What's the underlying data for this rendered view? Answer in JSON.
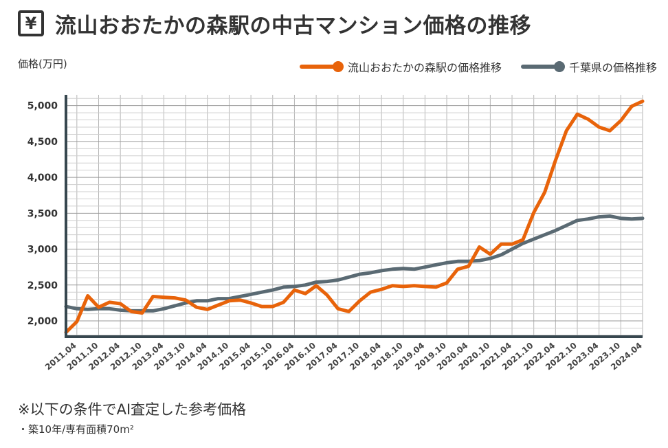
{
  "header": {
    "icon": "yen-icon",
    "icon_glyph": "¥",
    "title": "流山おおたかの森駅の中古マンション価格の推移"
  },
  "notes": {
    "main": "※以下の条件でAI査定した参考価格",
    "condition": "・築10年/専有面積70m²"
  },
  "chart_data": {
    "type": "line",
    "ylabel": "価格(万円)",
    "ylim": [
      1780,
      5150
    ],
    "yticks": [
      2000,
      2500,
      3000,
      3500,
      4000,
      4500,
      5000
    ],
    "ytick_labels": [
      "2,000",
      "2,500",
      "3,000",
      "3,500",
      "4,000",
      "4,500",
      "5,000"
    ],
    "x_tick_labels": [
      "2011.04",
      "2011.10",
      "2012.04",
      "2012.10",
      "2013.04",
      "2013.10",
      "2014.04",
      "2014.10",
      "2015.04",
      "2015.10",
      "2016.04",
      "2016.10",
      "2017.04",
      "2017.10",
      "2018.04",
      "2018.10",
      "2019.04",
      "2019.10",
      "2020.04",
      "2020.10",
      "2021.04",
      "2021.10",
      "2022.04",
      "2022.10",
      "2023.04",
      "2023.10",
      "2024.04"
    ],
    "x": [
      "2011.01",
      "2011.04",
      "2011.07",
      "2011.10",
      "2012.01",
      "2012.04",
      "2012.07",
      "2012.10",
      "2013.01",
      "2013.04",
      "2013.07",
      "2013.10",
      "2014.01",
      "2014.04",
      "2014.07",
      "2014.10",
      "2015.01",
      "2015.04",
      "2015.07",
      "2015.10",
      "2016.01",
      "2016.04",
      "2016.07",
      "2016.10",
      "2017.01",
      "2017.04",
      "2017.07",
      "2017.10",
      "2018.01",
      "2018.04",
      "2018.07",
      "2018.10",
      "2019.01",
      "2019.04",
      "2019.07",
      "2019.10",
      "2020.01",
      "2020.04",
      "2020.07",
      "2020.10",
      "2021.01",
      "2021.04",
      "2021.07",
      "2021.10",
      "2022.01",
      "2022.04",
      "2022.07",
      "2022.10",
      "2023.01",
      "2023.04",
      "2023.07",
      "2023.10",
      "2024.01",
      "2024.04"
    ],
    "series": [
      {
        "name": "流山おおたかの森駅の価格推移",
        "color": "#e8630a",
        "values": [
          1840,
          1990,
          2350,
          2190,
          2260,
          2240,
          2130,
          2110,
          2340,
          2330,
          2320,
          2290,
          2190,
          2160,
          2220,
          2280,
          2290,
          2250,
          2200,
          2200,
          2260,
          2430,
          2380,
          2490,
          2360,
          2170,
          2130,
          2280,
          2400,
          2440,
          2490,
          2480,
          2490,
          2480,
          2470,
          2530,
          2720,
          2760,
          3030,
          2930,
          3070,
          3070,
          3130,
          3510,
          3790,
          4240,
          4650,
          4880,
          4810,
          4700,
          4650,
          4790,
          4990,
          5060
        ]
      },
      {
        "name": "千葉県の価格推移",
        "color": "#5a6a73",
        "values": [
          2200,
          2170,
          2160,
          2170,
          2170,
          2150,
          2140,
          2140,
          2140,
          2170,
          2210,
          2250,
          2280,
          2280,
          2310,
          2310,
          2340,
          2370,
          2400,
          2430,
          2470,
          2480,
          2500,
          2540,
          2550,
          2570,
          2610,
          2650,
          2670,
          2700,
          2720,
          2730,
          2720,
          2750,
          2780,
          2810,
          2830,
          2830,
          2840,
          2870,
          2920,
          3000,
          3080,
          3140,
          3200,
          3260,
          3330,
          3400,
          3420,
          3450,
          3460,
          3430,
          3420,
          3430
        ]
      }
    ],
    "grid": true,
    "legend_position": "top-right"
  }
}
